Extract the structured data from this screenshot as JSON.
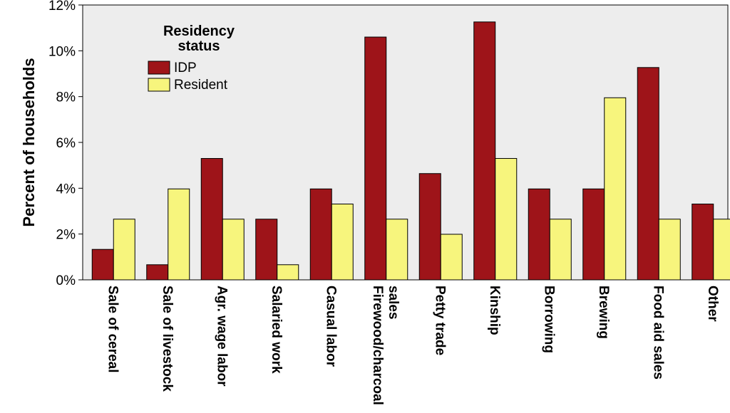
{
  "chart_data": {
    "type": "bar",
    "title": "",
    "xlabel": "",
    "ylabel": "Percent of households",
    "ylim": [
      0,
      12
    ],
    "yticks": [
      "0%",
      "2%",
      "4%",
      "6%",
      "8%",
      "10%",
      "12%"
    ],
    "grid": false,
    "legend": {
      "title_lines": [
        "Residency",
        "status"
      ],
      "placement": "top-left"
    },
    "categories": [
      [
        "Sale of cereal"
      ],
      [
        "Sale of livestock"
      ],
      [
        "Agr. wage labor"
      ],
      [
        "Salaried work"
      ],
      [
        "Casual labor"
      ],
      [
        "Firewood/charcoal",
        "sales"
      ],
      [
        "Petty trade"
      ],
      [
        "Kinship"
      ],
      [
        "Borrowing"
      ],
      [
        "Brewing"
      ],
      [
        "Food aid sales"
      ],
      [
        "Other"
      ]
    ],
    "series": [
      {
        "name": "IDP",
        "color": "#9e1419",
        "values": [
          1.33,
          0.66,
          5.3,
          2.65,
          3.97,
          10.6,
          4.64,
          11.26,
          3.97,
          3.97,
          9.27,
          3.31
        ]
      },
      {
        "name": "Resident",
        "color": "#f7f57d",
        "values": [
          2.65,
          3.97,
          2.65,
          0.66,
          3.31,
          2.65,
          1.99,
          5.3,
          2.65,
          7.95,
          2.65,
          2.65
        ]
      }
    ]
  }
}
